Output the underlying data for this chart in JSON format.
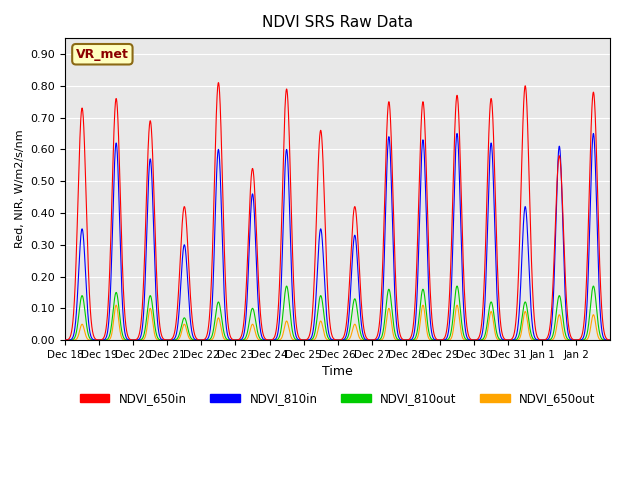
{
  "title": "NDVI SRS Raw Data",
  "xlabel": "Time",
  "ylabel": "Red, NIR, W/m2/s/nm",
  "ylim": [
    0.0,
    0.95
  ],
  "yticks": [
    0.0,
    0.1,
    0.2,
    0.3,
    0.4,
    0.5,
    0.6,
    0.7,
    0.8,
    0.9
  ],
  "annotation_text": "VR_met",
  "annotation_color": "#8B0000",
  "annotation_bg": "#FFFFC0",
  "annotation_edge": "#8B6914",
  "line_colors": {
    "NDVI_650in": "#FF0000",
    "NDVI_810in": "#0000FF",
    "NDVI_810out": "#00CC00",
    "NDVI_650out": "#FFA500"
  },
  "legend_labels": [
    "NDVI_650in",
    "NDVI_810in",
    "NDVI_810out",
    "NDVI_650out"
  ],
  "axes_bg": "#E8E8E8",
  "num_days": 16,
  "start_day": 18,
  "peaks_650in": [
    0.73,
    0.76,
    0.69,
    0.42,
    0.81,
    0.54,
    0.79,
    0.66,
    0.42,
    0.75,
    0.75,
    0.77,
    0.76,
    0.8,
    0.58,
    0.78
  ],
  "peaks_810in": [
    0.35,
    0.62,
    0.57,
    0.3,
    0.6,
    0.46,
    0.6,
    0.35,
    0.33,
    0.64,
    0.63,
    0.65,
    0.62,
    0.42,
    0.61,
    0.65
  ],
  "peaks_810out": [
    0.14,
    0.15,
    0.14,
    0.07,
    0.12,
    0.1,
    0.17,
    0.14,
    0.13,
    0.16,
    0.16,
    0.17,
    0.12,
    0.12,
    0.14,
    0.17
  ],
  "peaks_650out": [
    0.05,
    0.11,
    0.1,
    0.05,
    0.07,
    0.05,
    0.06,
    0.06,
    0.05,
    0.1,
    0.11,
    0.11,
    0.09,
    0.09,
    0.08,
    0.08
  ],
  "tick_labels": [
    "Dec 18",
    "Dec 19",
    "Dec 20",
    "Dec 21",
    "Dec 22",
    "Dec 23",
    "Dec 24",
    "Dec 25",
    "Dec 26",
    "Dec 27",
    "Dec 28",
    "Dec 29",
    "Dec 30",
    "Dec 31",
    "Jan 1",
    "Jan 2"
  ]
}
